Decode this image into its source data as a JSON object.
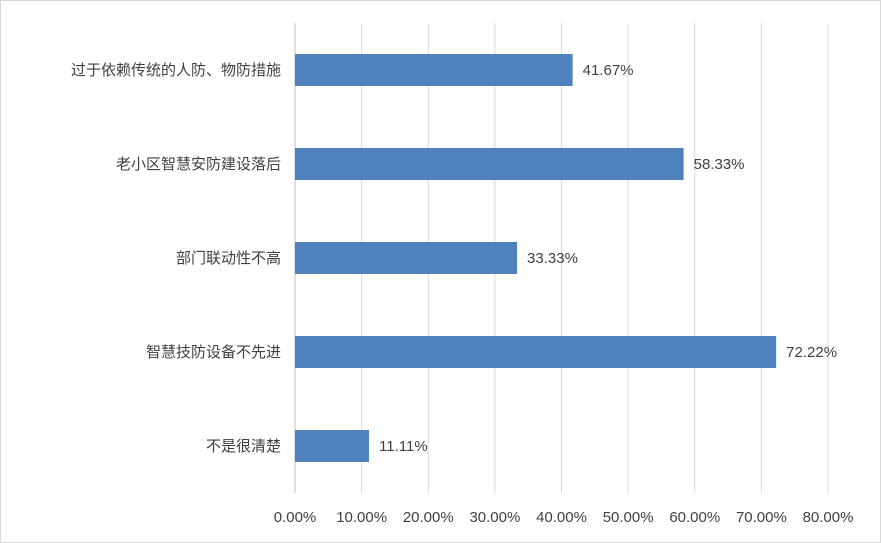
{
  "chart_data": {
    "type": "hbar",
    "categories": [
      "过于依赖传统的人防、物防措施",
      "老小区智慧安防建设落后",
      "部门联动性不高",
      "智慧技防设备不先进",
      "不是很清楚"
    ],
    "values": [
      41.67,
      58.33,
      33.33,
      72.22,
      11.11
    ],
    "value_labels": [
      "41.67%",
      "58.33%",
      "33.33%",
      "72.22%",
      "11.11%"
    ],
    "color": "#4f81bd",
    "xlim": [
      0,
      80
    ],
    "xticks": [
      {
        "value": 0,
        "label": "0.00%"
      },
      {
        "value": 10,
        "label": "10.00%"
      },
      {
        "value": 20,
        "label": "20.00%"
      },
      {
        "value": 30,
        "label": "30.00%"
      },
      {
        "value": 40,
        "label": "40.00%"
      },
      {
        "value": 50,
        "label": "50.00%"
      },
      {
        "value": 60,
        "label": "60.00%"
      },
      {
        "value": 70,
        "label": "70.00%"
      },
      {
        "value": 80,
        "label": "80.00%"
      }
    ],
    "grid": true
  }
}
